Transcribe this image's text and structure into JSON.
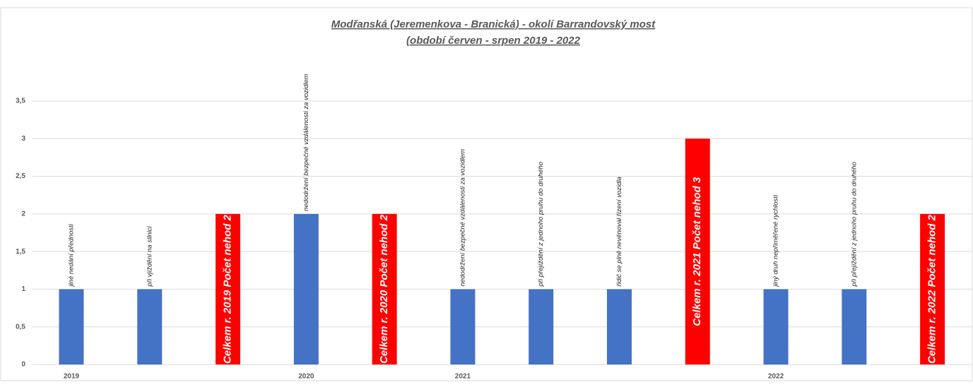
{
  "chart_data": {
    "type": "bar",
    "title": "Modřanská (Jeremenkova - Branická) - okolí Barrandovský most",
    "subtitle": "(období červen - srpen 2019 - 2022",
    "categories": [
      "2019",
      null,
      null,
      "2020",
      null,
      "2021",
      null,
      null,
      null,
      "2022",
      null,
      null
    ],
    "values": [
      1,
      1,
      2,
      2,
      2,
      1,
      1,
      1,
      3,
      1,
      1,
      2
    ],
    "colors": [
      "#4472c4",
      "#4472c4",
      "#ff0000",
      "#4472c4",
      "#ff0000",
      "#4472c4",
      "#4472c4",
      "#4472c4",
      "#ff0000",
      "#4472c4",
      "#4472c4",
      "#ff0000"
    ],
    "annotations": [
      "jiné nedání přednosti",
      "při vjíždění na silnici",
      "Celkem r. 2019 Počet nehod 2",
      "nedodržení bezpečné vzdálenosti za vozidlem",
      "Celkem r. 2020 Počet nehod 2",
      "nedodržení bezpečné vzdálenosti za vozidlem",
      "při přejíždění z jednoho pruhu do druhého",
      "řidič se plně nevěnoval řízení vozidla",
      "Celkem r. 2021 Počet nehod 3",
      "jiný druh nepřiměřené rychlosti",
      "při přejíždění z jednoho pruhu do druhého",
      "Celkem r. 2022 Počet nehod 2"
    ],
    "ylim": [
      0,
      3.5
    ],
    "yticks": [
      0,
      {
        "value": 0.5,
        "label": "0,5"
      },
      1,
      {
        "value": 1.5,
        "label": "1,5"
      },
      2,
      {
        "value": 2.5,
        "label": "2,5"
      },
      3,
      {
        "value": 3.5,
        "label": "3,5"
      }
    ],
    "grid": true
  }
}
